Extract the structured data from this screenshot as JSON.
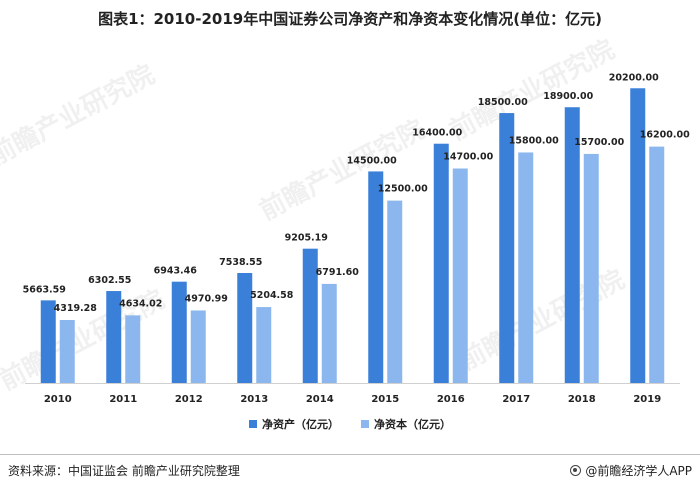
{
  "title": "图表1：2010-2019年中国证券公司净资产和净资本变化情况(单位：亿元)",
  "source": "资料来源：中国证监会 前瞻产业研究院整理",
  "brand": "@前瞻经济学人APP",
  "watermark": "前瞻产业研究院",
  "colors": {
    "net_assets": "#3a7fd8",
    "net_capital": "#8bb7ee"
  },
  "chart_data": {
    "type": "bar",
    "categories": [
      "2010",
      "2011",
      "2012",
      "2013",
      "2014",
      "2015",
      "2016",
      "2017",
      "2018",
      "2019"
    ],
    "series": [
      {
        "name": "净资产（亿元）",
        "values": [
          5663.59,
          6302.55,
          6943.46,
          7538.55,
          9205.19,
          14500.0,
          16400.0,
          18500.0,
          18900.0,
          20200.0
        ],
        "labels": [
          "5663.59",
          "6302.55",
          "6943.46",
          "7538.55",
          "9205.19",
          "14500.00",
          "16400.00",
          "18500.00",
          "18900.00",
          "20200.00"
        ]
      },
      {
        "name": "净资本（亿元）",
        "values": [
          4319.28,
          4634.02,
          4970.99,
          5204.58,
          6791.6,
          12500.0,
          14700.0,
          15800.0,
          15700.0,
          16200.0
        ],
        "labels": [
          "4319.28",
          "4634.02",
          "4970.99",
          "5204.58",
          "6791.60",
          "12500.00",
          "14700.00",
          "15800.00",
          "15700.00",
          "16200.00"
        ]
      }
    ],
    "ylim": [
      0,
      22000
    ],
    "grid": false,
    "legend": "bottom"
  }
}
